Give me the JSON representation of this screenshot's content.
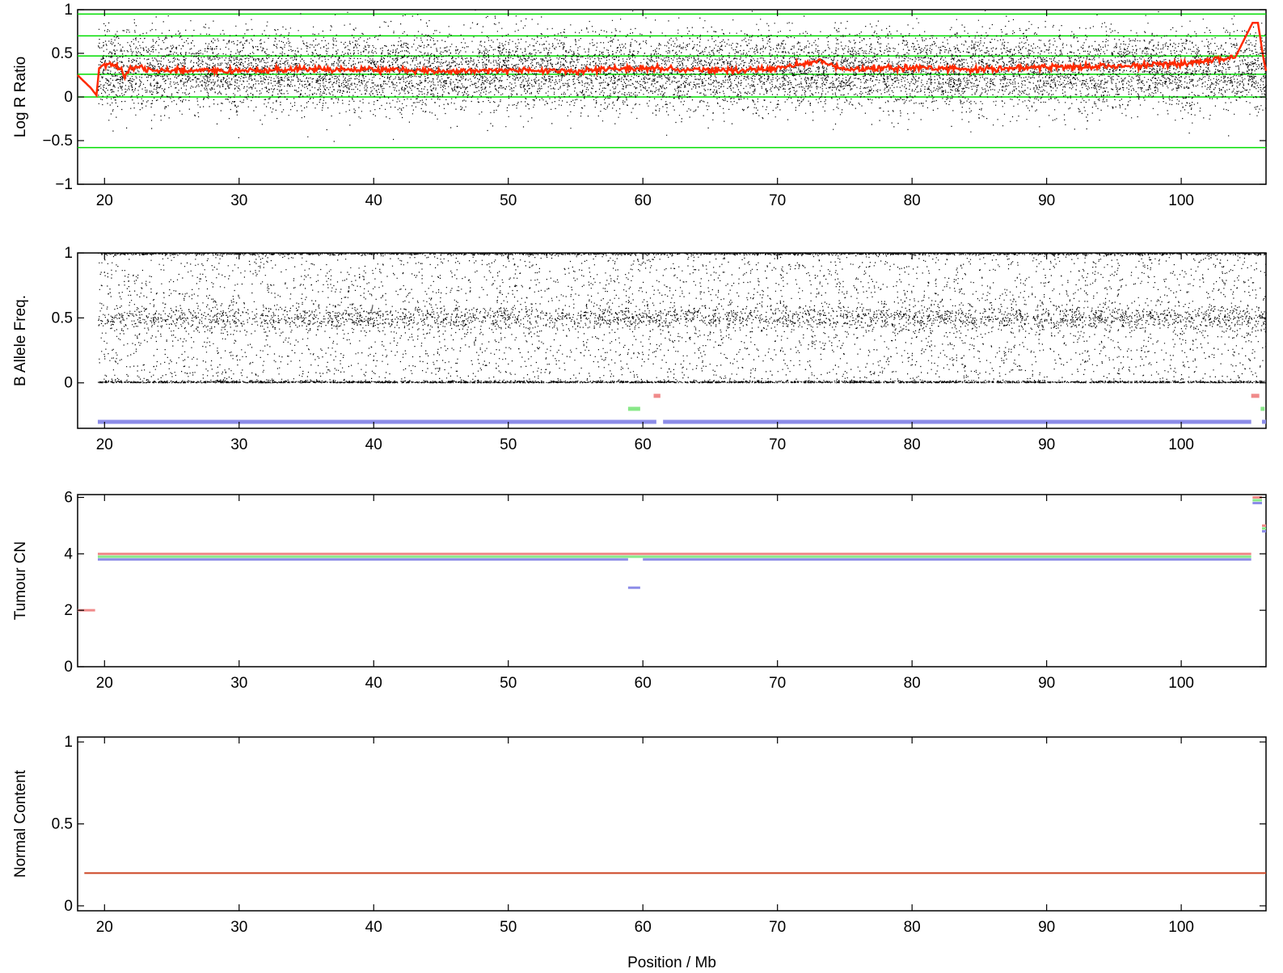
{
  "colors": {
    "points": "#000000",
    "segment_line": "#ff2a00",
    "guide_lines": "#00dd00",
    "red_segment": "#f08a8a",
    "green_segment": "#88e888",
    "blue_segment": "#8c8ce8",
    "normal_line": "#cc4422"
  },
  "chart_data": [
    {
      "id": "lrr",
      "type": "scatter",
      "ylabel": "Log R Ratio",
      "xlim": [
        18,
        106.3
      ],
      "ylim": [
        -1,
        1
      ],
      "x_ticks": [
        20,
        30,
        40,
        50,
        60,
        70,
        80,
        90,
        100
      ],
      "x_tick_labels": [
        "20",
        "30",
        "40",
        "50",
        "60",
        "70",
        "80",
        "90",
        "100"
      ],
      "y_ticks": [
        -1,
        -0.5,
        0,
        0.5,
        1
      ],
      "y_tick_labels": [
        "−1",
        "−0.5",
        "0",
        "0.5",
        "1"
      ],
      "grid": false,
      "reference_lines_y": [
        0.95,
        0.7,
        0.47,
        0.26,
        0,
        -0.58
      ],
      "point_cloud": {
        "x_range": [
          19.5,
          106.3
        ],
        "center": 0.3,
        "spread": 0.32,
        "min": -1,
        "max": 1
      },
      "segment_line": {
        "x": [
          18.0,
          19.0,
          19.4,
          19.6,
          20.0,
          21.0,
          21.5,
          22.0,
          25,
          30,
          35,
          40,
          45,
          50,
          55,
          60,
          65,
          70,
          73,
          75,
          80,
          85,
          90,
          95,
          100,
          104,
          105.3,
          105.7,
          106.1,
          106.3
        ],
        "y": [
          0.25,
          0.1,
          0.02,
          0.33,
          0.38,
          0.35,
          0.25,
          0.34,
          0.3,
          0.3,
          0.32,
          0.31,
          0.3,
          0.31,
          0.3,
          0.33,
          0.3,
          0.32,
          0.42,
          0.32,
          0.33,
          0.32,
          0.34,
          0.35,
          0.38,
          0.45,
          0.85,
          0.85,
          0.45,
          0.3
        ]
      }
    },
    {
      "id": "baf",
      "type": "scatter",
      "ylabel": "B Allele Freq.",
      "xlim": [
        18,
        106.3
      ],
      "ylim": [
        -0.35,
        1
      ],
      "x_ticks": [
        20,
        30,
        40,
        50,
        60,
        70,
        80,
        90,
        100
      ],
      "x_tick_labels": [
        "20",
        "30",
        "40",
        "50",
        "60",
        "70",
        "80",
        "90",
        "100"
      ],
      "y_ticks": [
        0,
        0.5,
        1
      ],
      "y_tick_labels": [
        "0",
        "0.5",
        "1"
      ],
      "grid": false,
      "point_cloud": {
        "x_range": [
          19.5,
          106.3
        ],
        "bands": [
          0,
          0.5,
          1
        ]
      },
      "segments": [
        {
          "color": "blue",
          "y": -0.3,
          "x": [
            19.5,
            61.0
          ]
        },
        {
          "color": "blue",
          "y": -0.3,
          "x": [
            61.5,
            105.2
          ]
        },
        {
          "color": "blue",
          "y": -0.3,
          "x": [
            106.0,
            106.3
          ]
        },
        {
          "color": "green",
          "y": -0.2,
          "x": [
            58.9,
            59.8
          ]
        },
        {
          "color": "green",
          "y": -0.2,
          "x": [
            105.9,
            106.2
          ]
        },
        {
          "color": "red",
          "y": -0.1,
          "x": [
            60.8,
            61.3
          ]
        },
        {
          "color": "red",
          "y": -0.1,
          "x": [
            105.2,
            105.8
          ]
        }
      ]
    },
    {
      "id": "tumour_cn",
      "type": "line",
      "ylabel": "Tumour CN",
      "xlim": [
        18,
        106.3
      ],
      "ylim": [
        0,
        6.1
      ],
      "x_ticks": [
        20,
        30,
        40,
        50,
        60,
        70,
        80,
        90,
        100
      ],
      "x_tick_labels": [
        "20",
        "30",
        "40",
        "50",
        "60",
        "70",
        "80",
        "90",
        "100"
      ],
      "y_ticks": [
        0,
        2,
        4,
        6
      ],
      "y_tick_labels": [
        "0",
        "2",
        "4",
        "6"
      ],
      "grid": false,
      "segments": [
        {
          "color": "red",
          "y": 2.0,
          "x": [
            18.0,
            19.3
          ]
        },
        {
          "color": "red",
          "y": 4.0,
          "x": [
            19.5,
            105.2
          ]
        },
        {
          "color": "green",
          "y": 3.9,
          "x": [
            19.5,
            105.2
          ]
        },
        {
          "color": "blue",
          "y": 3.8,
          "x": [
            19.5,
            58.9
          ]
        },
        {
          "color": "blue",
          "y": 3.8,
          "x": [
            60.0,
            105.2
          ]
        },
        {
          "color": "blue",
          "y": 2.8,
          "x": [
            58.9,
            59.8
          ]
        },
        {
          "color": "red",
          "y": 6.0,
          "x": [
            105.3,
            106.0
          ]
        },
        {
          "color": "green",
          "y": 5.9,
          "x": [
            105.3,
            106.0
          ]
        },
        {
          "color": "blue",
          "y": 5.8,
          "x": [
            105.3,
            106.0
          ]
        },
        {
          "color": "red",
          "y": 5.0,
          "x": [
            106.0,
            106.3
          ]
        },
        {
          "color": "green",
          "y": 4.9,
          "x": [
            106.0,
            106.3
          ]
        },
        {
          "color": "blue",
          "y": 4.8,
          "x": [
            106.0,
            106.3
          ]
        }
      ]
    },
    {
      "id": "normal_content",
      "type": "line",
      "ylabel": "Normal Content",
      "xlabel": "Position / Mb",
      "xlim": [
        18,
        106.3
      ],
      "ylim": [
        -0.03,
        1.03
      ],
      "x_ticks": [
        20,
        30,
        40,
        50,
        60,
        70,
        80,
        90,
        100
      ],
      "x_tick_labels": [
        "20",
        "30",
        "40",
        "50",
        "60",
        "70",
        "80",
        "90",
        "100"
      ],
      "y_ticks": [
        0,
        0.5,
        1
      ],
      "y_tick_labels": [
        "0",
        "0.5",
        "1"
      ],
      "grid": false,
      "segments": [
        {
          "color": "normal",
          "y": 0.2,
          "x": [
            18.5,
            106.3
          ]
        }
      ]
    }
  ]
}
